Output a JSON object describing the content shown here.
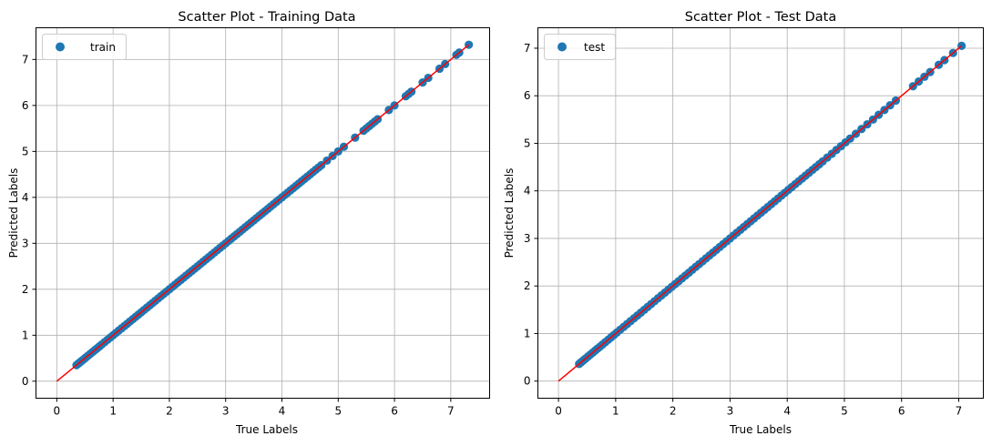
{
  "colors": {
    "marker": "#1f77b4",
    "ideal_line": "#ff0000",
    "grid": "#b0b0b0",
    "axes": "#000000",
    "background": "#ffffff"
  },
  "chart_data": [
    {
      "type": "scatter",
      "title": "Scatter Plot - Training Data",
      "xlabel": "True Labels",
      "ylabel": "Predicted Labels",
      "xlim": [
        -0.37,
        7.69
      ],
      "ylim": [
        -0.37,
        7.69
      ],
      "xticks": [
        0,
        1,
        2,
        3,
        4,
        5,
        6,
        7
      ],
      "yticks": [
        0,
        1,
        2,
        3,
        4,
        5,
        6,
        7
      ],
      "grid": true,
      "legend": {
        "location": "upper-left",
        "entries": [
          "train"
        ]
      },
      "reference_line": {
        "x": [
          0,
          7.32
        ],
        "y": [
          0,
          7.32
        ]
      },
      "series": [
        {
          "name": "train",
          "marker": "circle",
          "x": [
            0.35,
            0.38,
            0.4,
            0.43,
            0.46,
            0.49,
            0.52,
            0.56,
            0.6,
            0.64,
            0.68,
            0.72,
            0.76,
            0.8,
            0.85,
            0.9,
            0.95,
            1.0,
            1.05,
            1.1,
            1.15,
            1.2,
            1.25,
            1.3,
            1.35,
            1.4,
            1.45,
            1.5,
            1.55,
            1.6,
            1.65,
            1.7,
            1.75,
            1.8,
            1.85,
            1.9,
            1.95,
            2.0,
            2.05,
            2.1,
            2.15,
            2.2,
            2.25,
            2.3,
            2.35,
            2.4,
            2.45,
            2.5,
            2.55,
            2.6,
            2.65,
            2.7,
            2.75,
            2.8,
            2.85,
            2.9,
            2.95,
            3.0,
            3.05,
            3.1,
            3.15,
            3.2,
            3.25,
            3.3,
            3.35,
            3.4,
            3.45,
            3.5,
            3.55,
            3.6,
            3.65,
            3.7,
            3.75,
            3.8,
            3.85,
            3.9,
            3.95,
            4.0,
            4.05,
            4.1,
            4.15,
            4.2,
            4.25,
            4.3,
            4.35,
            4.4,
            4.45,
            4.5,
            4.55,
            4.6,
            4.65,
            4.7,
            4.8,
            4.9,
            5.0,
            5.1,
            5.3,
            5.45,
            5.5,
            5.55,
            5.6,
            5.65,
            5.7,
            5.9,
            6.0,
            6.2,
            6.25,
            6.3,
            6.5,
            6.6,
            6.8,
            6.9,
            7.1,
            7.15,
            7.32
          ],
          "y": [
            0.35,
            0.38,
            0.4,
            0.43,
            0.46,
            0.49,
            0.52,
            0.56,
            0.6,
            0.64,
            0.68,
            0.72,
            0.76,
            0.8,
            0.85,
            0.9,
            0.95,
            1.0,
            1.05,
            1.1,
            1.15,
            1.2,
            1.25,
            1.3,
            1.35,
            1.4,
            1.45,
            1.5,
            1.55,
            1.6,
            1.65,
            1.7,
            1.75,
            1.8,
            1.85,
            1.9,
            1.95,
            2.0,
            2.05,
            2.1,
            2.15,
            2.2,
            2.25,
            2.3,
            2.35,
            2.4,
            2.45,
            2.5,
            2.55,
            2.6,
            2.65,
            2.7,
            2.75,
            2.8,
            2.85,
            2.9,
            2.95,
            3.0,
            3.05,
            3.1,
            3.15,
            3.2,
            3.25,
            3.3,
            3.35,
            3.4,
            3.45,
            3.5,
            3.55,
            3.6,
            3.65,
            3.7,
            3.75,
            3.8,
            3.85,
            3.9,
            3.95,
            4.0,
            4.05,
            4.1,
            4.15,
            4.2,
            4.25,
            4.3,
            4.35,
            4.4,
            4.45,
            4.5,
            4.55,
            4.6,
            4.65,
            4.7,
            4.8,
            4.9,
            5.0,
            5.1,
            5.3,
            5.45,
            5.5,
            5.55,
            5.6,
            5.65,
            5.7,
            5.9,
            6.0,
            6.2,
            6.25,
            6.3,
            6.5,
            6.6,
            6.8,
            6.9,
            7.1,
            7.15,
            7.32
          ]
        }
      ]
    },
    {
      "type": "scatter",
      "title": "Scatter Plot - Test Data",
      "xlabel": "True Labels",
      "ylabel": "Predicted Labels",
      "xlim": [
        -0.36,
        7.43
      ],
      "ylim": [
        -0.36,
        7.43
      ],
      "xticks": [
        0,
        1,
        2,
        3,
        4,
        5,
        6,
        7
      ],
      "yticks": [
        0,
        1,
        2,
        3,
        4,
        5,
        6,
        7
      ],
      "grid": true,
      "legend": {
        "location": "upper-left",
        "entries": [
          "test"
        ]
      },
      "reference_line": {
        "x": [
          0,
          7.05
        ],
        "y": [
          0,
          7.05
        ]
      },
      "series": [
        {
          "name": "test",
          "marker": "circle",
          "x": [
            0.36,
            0.39,
            0.42,
            0.45,
            0.48,
            0.52,
            0.56,
            0.6,
            0.64,
            0.68,
            0.72,
            0.77,
            0.82,
            0.87,
            0.92,
            0.97,
            1.02,
            1.08,
            1.14,
            1.2,
            1.26,
            1.32,
            1.38,
            1.44,
            1.5,
            1.56,
            1.62,
            1.68,
            1.74,
            1.8,
            1.86,
            1.92,
            1.98,
            2.04,
            2.1,
            2.16,
            2.22,
            2.28,
            2.34,
            2.4,
            2.46,
            2.52,
            2.58,
            2.64,
            2.7,
            2.76,
            2.82,
            2.88,
            2.94,
            3.0,
            3.06,
            3.12,
            3.18,
            3.24,
            3.3,
            3.36,
            3.42,
            3.48,
            3.54,
            3.6,
            3.66,
            3.72,
            3.78,
            3.84,
            3.9,
            3.96,
            4.02,
            4.08,
            4.14,
            4.2,
            4.26,
            4.32,
            4.38,
            4.44,
            4.5,
            4.56,
            4.62,
            4.7,
            4.78,
            4.86,
            4.94,
            5.02,
            5.1,
            5.2,
            5.3,
            5.4,
            5.5,
            5.6,
            5.7,
            5.8,
            5.9,
            6.2,
            6.3,
            6.4,
            6.5,
            6.65,
            6.75,
            6.9,
            7.05
          ],
          "y": [
            0.36,
            0.39,
            0.42,
            0.45,
            0.48,
            0.52,
            0.56,
            0.6,
            0.64,
            0.68,
            0.72,
            0.77,
            0.82,
            0.87,
            0.92,
            0.97,
            1.02,
            1.08,
            1.14,
            1.2,
            1.26,
            1.32,
            1.38,
            1.44,
            1.5,
            1.56,
            1.62,
            1.68,
            1.74,
            1.8,
            1.86,
            1.92,
            1.98,
            2.04,
            2.1,
            2.16,
            2.22,
            2.28,
            2.34,
            2.4,
            2.46,
            2.52,
            2.58,
            2.64,
            2.7,
            2.76,
            2.82,
            2.88,
            2.94,
            3.0,
            3.06,
            3.12,
            3.18,
            3.24,
            3.3,
            3.36,
            3.42,
            3.48,
            3.54,
            3.6,
            3.66,
            3.72,
            3.78,
            3.84,
            3.9,
            3.96,
            4.02,
            4.08,
            4.14,
            4.2,
            4.26,
            4.32,
            4.38,
            4.44,
            4.5,
            4.56,
            4.62,
            4.7,
            4.78,
            4.86,
            4.94,
            5.02,
            5.1,
            5.2,
            5.3,
            5.4,
            5.5,
            5.6,
            5.7,
            5.8,
            5.9,
            6.2,
            6.3,
            6.4,
            6.5,
            6.65,
            6.75,
            6.9,
            7.05
          ]
        }
      ]
    }
  ]
}
